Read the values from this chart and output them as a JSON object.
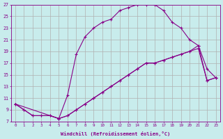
{
  "xlabel": "Windchill (Refroidissement éolien,°C)",
  "bg_color": "#c8ecec",
  "grid_color": "#b0b0b0",
  "line_color": "#880088",
  "xlim": [
    -0.5,
    23.5
  ],
  "ylim": [
    7,
    27
  ],
  "xticks": [
    0,
    1,
    2,
    3,
    4,
    5,
    6,
    7,
    8,
    9,
    10,
    11,
    12,
    13,
    14,
    15,
    16,
    17,
    18,
    19,
    20,
    21,
    22,
    23
  ],
  "yticks": [
    7,
    9,
    11,
    13,
    15,
    17,
    19,
    21,
    23,
    25,
    27
  ],
  "line1_x": [
    0,
    1,
    2,
    3,
    4,
    5,
    6,
    7,
    8,
    9,
    10,
    11,
    12,
    13,
    14,
    15,
    16,
    17,
    18,
    19,
    20,
    21,
    22,
    23
  ],
  "line1_y": [
    10,
    9,
    8,
    8,
    8,
    7.5,
    8,
    9,
    10,
    11,
    12,
    13,
    14,
    15,
    16,
    17,
    17,
    17.5,
    18,
    18.5,
    19,
    19.5,
    14,
    14.5
  ],
  "line2_x": [
    0,
    1,
    2,
    3,
    4,
    5,
    6,
    7,
    8,
    9,
    10,
    11,
    12,
    13,
    14,
    15,
    16,
    17,
    18,
    19,
    20,
    21,
    22,
    23
  ],
  "line2_y": [
    10,
    9,
    8,
    8,
    8,
    7.5,
    11.5,
    18.5,
    21.5,
    23,
    24,
    24.5,
    26,
    26.5,
    27,
    27,
    27,
    26,
    24,
    23,
    21,
    20,
    16,
    14.5
  ],
  "line3_x": [
    0,
    5,
    6,
    7,
    8,
    9,
    10,
    11,
    12,
    13,
    14,
    15,
    16,
    17,
    18,
    19,
    20,
    21,
    22,
    23
  ],
  "line3_y": [
    10,
    7.5,
    8,
    9,
    10,
    11,
    12,
    13,
    14,
    15,
    16,
    17,
    17,
    17.5,
    18,
    18.5,
    19,
    20,
    14,
    14.5
  ]
}
